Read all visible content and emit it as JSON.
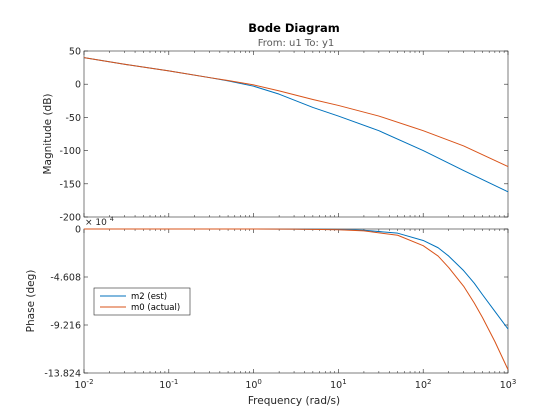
{
  "colors": {
    "series_est": "#0072BD",
    "series_actual": "#D95319",
    "axis": "#262626",
    "tick_text": "#262626",
    "subtitle": "#595959",
    "legend_border": "#262626"
  },
  "chart_data": {
    "type": "line",
    "title": "Bode Diagram",
    "subtitle": "From: u1  To: y1",
    "xlabel": "Frequency  (rad/s)",
    "x_scale": "log",
    "xlim": [
      0.01,
      1000
    ],
    "x_ticks": [
      {
        "value": 0.01,
        "base": "10",
        "exp": "-2"
      },
      {
        "value": 0.1,
        "base": "10",
        "exp": "-1"
      },
      {
        "value": 1,
        "base": "10",
        "exp": "0"
      },
      {
        "value": 10,
        "base": "10",
        "exp": "1"
      },
      {
        "value": 100,
        "base": "10",
        "exp": "2"
      },
      {
        "value": 1000,
        "base": "10",
        "exp": "3"
      }
    ],
    "grid": false,
    "legend": {
      "location": "lower-left of phase plot",
      "entries": [
        "m2 (est)",
        "m0 (actual)"
      ]
    },
    "magnitude": {
      "ylabel": "Magnitude (dB)",
      "ylim": [
        -200,
        50
      ],
      "yticks": [
        50,
        0,
        -50,
        -100,
        -150,
        -200
      ],
      "ytick_labels": [
        "50",
        "0",
        "-50",
        "-100",
        "-150",
        "-200"
      ],
      "series": [
        {
          "name": "m2 (est)",
          "x": [
            0.01,
            0.03,
            0.1,
            0.3,
            0.5,
            1,
            2,
            5,
            10,
            30,
            100,
            300,
            1000
          ],
          "y": [
            40,
            30,
            20,
            10,
            5,
            -3,
            -15,
            -35,
            -48,
            -70,
            -100,
            -130,
            -162
          ]
        },
        {
          "name": "m0 (actual)",
          "x": [
            0.01,
            0.03,
            0.1,
            0.3,
            0.5,
            1,
            2,
            5,
            10,
            30,
            100,
            300,
            1000
          ],
          "y": [
            40,
            30,
            20,
            10,
            5.5,
            -1,
            -10,
            -23,
            -32,
            -48,
            -70,
            -93,
            -124
          ]
        }
      ]
    },
    "phase": {
      "ylabel": "Phase (deg)",
      "exponent_label": "× 10",
      "exponent_power": "4",
      "ylim": [
        -13.824,
        0
      ],
      "yticks": [
        0,
        -4.608,
        -9.216,
        -13.824
      ],
      "ytick_labels": [
        "0",
        "-4.608",
        "-9.216",
        "-13.824"
      ],
      "series": [
        {
          "name": "m2 (est)",
          "x": [
            0.01,
            1,
            3,
            10,
            20,
            50,
            100,
            150,
            200,
            300,
            400,
            500,
            700,
            1000
          ],
          "y": [
            0,
            -0.003,
            -0.01,
            -0.05,
            -0.12,
            -0.4,
            -1.1,
            -1.8,
            -2.6,
            -4.0,
            -5.2,
            -6.3,
            -7.9,
            -9.6
          ]
        },
        {
          "name": "m0 (actual)",
          "x": [
            0.01,
            1,
            3,
            10,
            20,
            50,
            100,
            150,
            200,
            300,
            400,
            500,
            700,
            1000
          ],
          "y": [
            0,
            -0.003,
            -0.015,
            -0.07,
            -0.18,
            -0.6,
            -1.6,
            -2.6,
            -3.7,
            -5.5,
            -7.1,
            -8.5,
            -10.8,
            -13.5
          ]
        }
      ]
    }
  }
}
